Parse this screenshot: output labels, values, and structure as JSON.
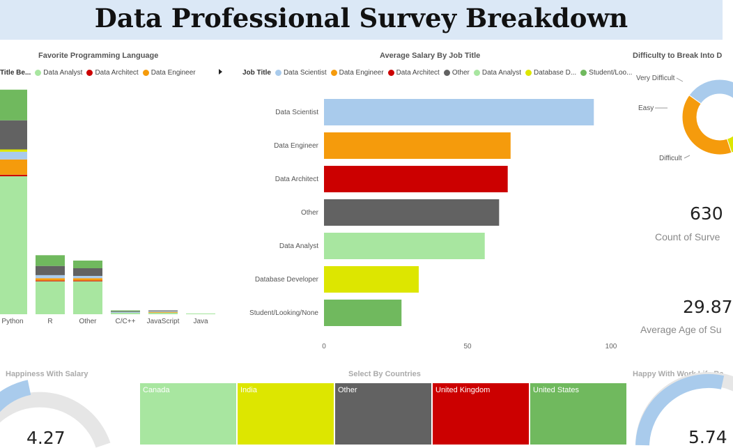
{
  "title": "Data Professional Survey Breakdown",
  "colors": {
    "title_bg": "#dbe8f6",
    "data_scientist": "#a9cbec",
    "data_engineer": "#f59b0c",
    "data_architect": "#cc0000",
    "other": "#626262",
    "data_analyst": "#a8e6a0",
    "database_developer": "#dde600",
    "student": "#70b95e"
  },
  "fav_lang": {
    "title": "Favorite Programming Language",
    "legend_title": "Title Be...",
    "legend": [
      {
        "label": "Data Analyst",
        "color": "#a8e6a0"
      },
      {
        "label": "Data Architect",
        "color": "#cc0000"
      },
      {
        "label": "Data Engineer",
        "color": "#f59b0c"
      }
    ],
    "categories": [
      "Python",
      "R",
      "Other",
      "C/C++",
      "JavaScript",
      "Java"
    ]
  },
  "salary": {
    "title": "Average Salary By Job Title",
    "legend_title": "Job Title",
    "legend": [
      {
        "label": "Data Scientist",
        "color": "#a9cbec"
      },
      {
        "label": "Data Engineer",
        "color": "#f59b0c"
      },
      {
        "label": "Data Architect",
        "color": "#cc0000"
      },
      {
        "label": "Other",
        "color": "#626262"
      },
      {
        "label": "Data Analyst",
        "color": "#a8e6a0"
      },
      {
        "label": "Database D...",
        "color": "#dde600"
      },
      {
        "label": "Student/Loo...",
        "color": "#70b95e"
      }
    ],
    "ticks": [
      "0",
      "50",
      "100"
    ]
  },
  "difficulty": {
    "title": "Difficulty to Break Into D",
    "labels": [
      "Very Difficult",
      "Easy",
      "Difficult"
    ]
  },
  "kpis": {
    "count_value": "630",
    "count_label": "Count of Surve",
    "age_value": "29.87",
    "age_label": "Average Age of Su"
  },
  "happiness": {
    "title": "Happiness With Salary",
    "value": "4.27"
  },
  "countries": {
    "title": "Select By Countries",
    "cells": [
      {
        "label": "Canada",
        "color": "#a8e6a0"
      },
      {
        "label": "India",
        "color": "#dde600"
      },
      {
        "label": "Other",
        "color": "#626262"
      },
      {
        "label": "United Kingdom",
        "color": "#cc0000"
      },
      {
        "label": "United States",
        "color": "#70b95e"
      }
    ]
  },
  "worklife": {
    "title": "Happy With Work Life Ba",
    "value": "5.74"
  },
  "chart_data": [
    {
      "type": "bar",
      "orientation": "horizontal",
      "title": "Average Salary By Job Title",
      "categories": [
        "Data Scientist",
        "Data Engineer",
        "Data Architect",
        "Other",
        "Data Analyst",
        "Database Developer",
        "Student/Looking/None"
      ],
      "values": [
        94,
        65,
        64,
        61,
        56,
        33,
        27
      ],
      "xlim": [
        0,
        100
      ]
    },
    {
      "type": "bar",
      "stacked": true,
      "title": "Favorite Programming Language",
      "categories": [
        "Python",
        "R",
        "Other",
        "C/C++",
        "JavaScript",
        "Java"
      ],
      "series": [
        {
          "name": "Data Analyst",
          "color": "#a8e6a0",
          "values": [
            180,
            43,
            43,
            2,
            2,
            1
          ]
        },
        {
          "name": "Data Architect",
          "color": "#cc0000",
          "values": [
            2,
            1,
            1,
            0,
            0,
            0
          ]
        },
        {
          "name": "Data Engineer",
          "color": "#f59b0c",
          "values": [
            20,
            3,
            3,
            0,
            1,
            0
          ]
        },
        {
          "color": "#a9cbec",
          "values": [
            10,
            4,
            3,
            1,
            1,
            0
          ]
        },
        {
          "color": "#dde600",
          "values": [
            3,
            0,
            0,
            0,
            0,
            0
          ]
        },
        {
          "color": "#626262",
          "values": [
            38,
            12,
            10,
            1,
            1,
            0
          ]
        },
        {
          "color": "#70b95e",
          "values": [
            40,
            14,
            10,
            1,
            0,
            0
          ]
        }
      ]
    },
    {
      "type": "pie",
      "donut": true,
      "title": "Difficulty to Break Into D",
      "slices": [
        {
          "label": "Easy",
          "value": 27,
          "color": "#a9cbec"
        },
        {
          "label": "Very Difficult",
          "value": 7,
          "color": "#cc0000"
        },
        {
          "value": 4,
          "color": "#70b95e"
        },
        {
          "value": 22,
          "color": "#dde600"
        },
        {
          "label": "Difficult",
          "value": 40,
          "color": "#f59b0c"
        }
      ]
    }
  ]
}
